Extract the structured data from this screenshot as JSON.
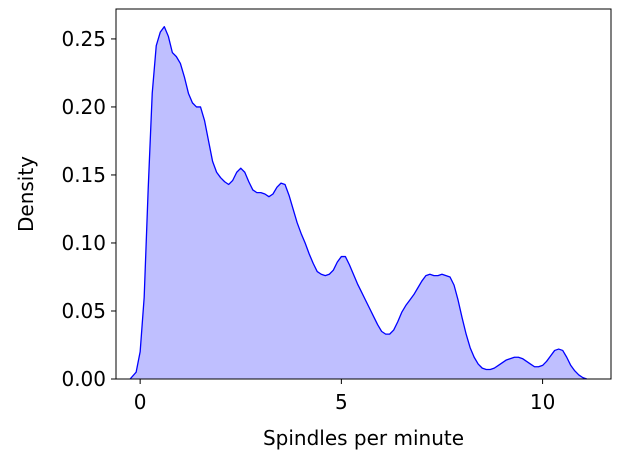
{
  "chart_data": {
    "type": "area",
    "title": "",
    "xlabel": "Spindles per minute",
    "ylabel": "Density",
    "xlim": [
      -0.6,
      11.7
    ],
    "ylim": [
      0,
      0.272
    ],
    "xticks": [
      0,
      5,
      10
    ],
    "xtick_labels": [
      "0",
      "5",
      "10"
    ],
    "yticks": [
      0,
      0.05,
      0.1,
      0.15,
      0.2,
      0.25
    ],
    "ytick_labels": [
      "0.00",
      "0.05",
      "0.10",
      "0.15",
      "0.20",
      "0.25"
    ],
    "grid": false,
    "series": [
      {
        "line_color": "#0000ff",
        "fill_color": "#bfbfff",
        "x": [
          -0.25,
          -0.1,
          0.0,
          0.1,
          0.2,
          0.3,
          0.4,
          0.5,
          0.6,
          0.7,
          0.8,
          0.9,
          1.0,
          1.1,
          1.2,
          1.3,
          1.4,
          1.5,
          1.6,
          1.7,
          1.8,
          1.9,
          2.0,
          2.1,
          2.2,
          2.3,
          2.4,
          2.5,
          2.6,
          2.7,
          2.8,
          2.9,
          3.0,
          3.1,
          3.2,
          3.3,
          3.4,
          3.5,
          3.6,
          3.7,
          3.8,
          3.9,
          4.0,
          4.1,
          4.2,
          4.3,
          4.4,
          4.5,
          4.6,
          4.7,
          4.8,
          4.9,
          5.0,
          5.1,
          5.2,
          5.3,
          5.4,
          5.5,
          5.6,
          5.7,
          5.8,
          5.9,
          6.0,
          6.1,
          6.2,
          6.3,
          6.4,
          6.5,
          6.6,
          6.7,
          6.8,
          6.9,
          7.0,
          7.1,
          7.2,
          7.3,
          7.4,
          7.5,
          7.6,
          7.7,
          7.8,
          7.9,
          8.0,
          8.1,
          8.2,
          8.3,
          8.4,
          8.5,
          8.6,
          8.7,
          8.8,
          8.9,
          9.0,
          9.1,
          9.2,
          9.3,
          9.4,
          9.5,
          9.6,
          9.7,
          9.8,
          9.9,
          10.0,
          10.1,
          10.2,
          10.3,
          10.4,
          10.5,
          10.6,
          10.7,
          10.8,
          10.9,
          11.0,
          11.1
        ],
        "y": [
          0.0,
          0.005,
          0.02,
          0.06,
          0.14,
          0.21,
          0.245,
          0.255,
          0.259,
          0.252,
          0.24,
          0.237,
          0.232,
          0.222,
          0.21,
          0.203,
          0.2,
          0.2,
          0.19,
          0.175,
          0.16,
          0.152,
          0.148,
          0.145,
          0.143,
          0.146,
          0.152,
          0.155,
          0.152,
          0.145,
          0.139,
          0.137,
          0.137,
          0.136,
          0.134,
          0.136,
          0.141,
          0.144,
          0.143,
          0.135,
          0.125,
          0.115,
          0.107,
          0.1,
          0.092,
          0.085,
          0.079,
          0.077,
          0.076,
          0.077,
          0.08,
          0.086,
          0.09,
          0.09,
          0.084,
          0.077,
          0.07,
          0.064,
          0.058,
          0.052,
          0.046,
          0.04,
          0.035,
          0.033,
          0.033,
          0.036,
          0.042,
          0.049,
          0.054,
          0.058,
          0.062,
          0.067,
          0.072,
          0.076,
          0.077,
          0.076,
          0.076,
          0.077,
          0.076,
          0.075,
          0.069,
          0.058,
          0.045,
          0.033,
          0.023,
          0.016,
          0.011,
          0.008,
          0.007,
          0.007,
          0.008,
          0.01,
          0.012,
          0.014,
          0.015,
          0.016,
          0.016,
          0.015,
          0.013,
          0.011,
          0.009,
          0.009,
          0.01,
          0.013,
          0.017,
          0.021,
          0.022,
          0.021,
          0.016,
          0.01,
          0.006,
          0.003,
          0.001,
          0.0
        ]
      }
    ]
  }
}
